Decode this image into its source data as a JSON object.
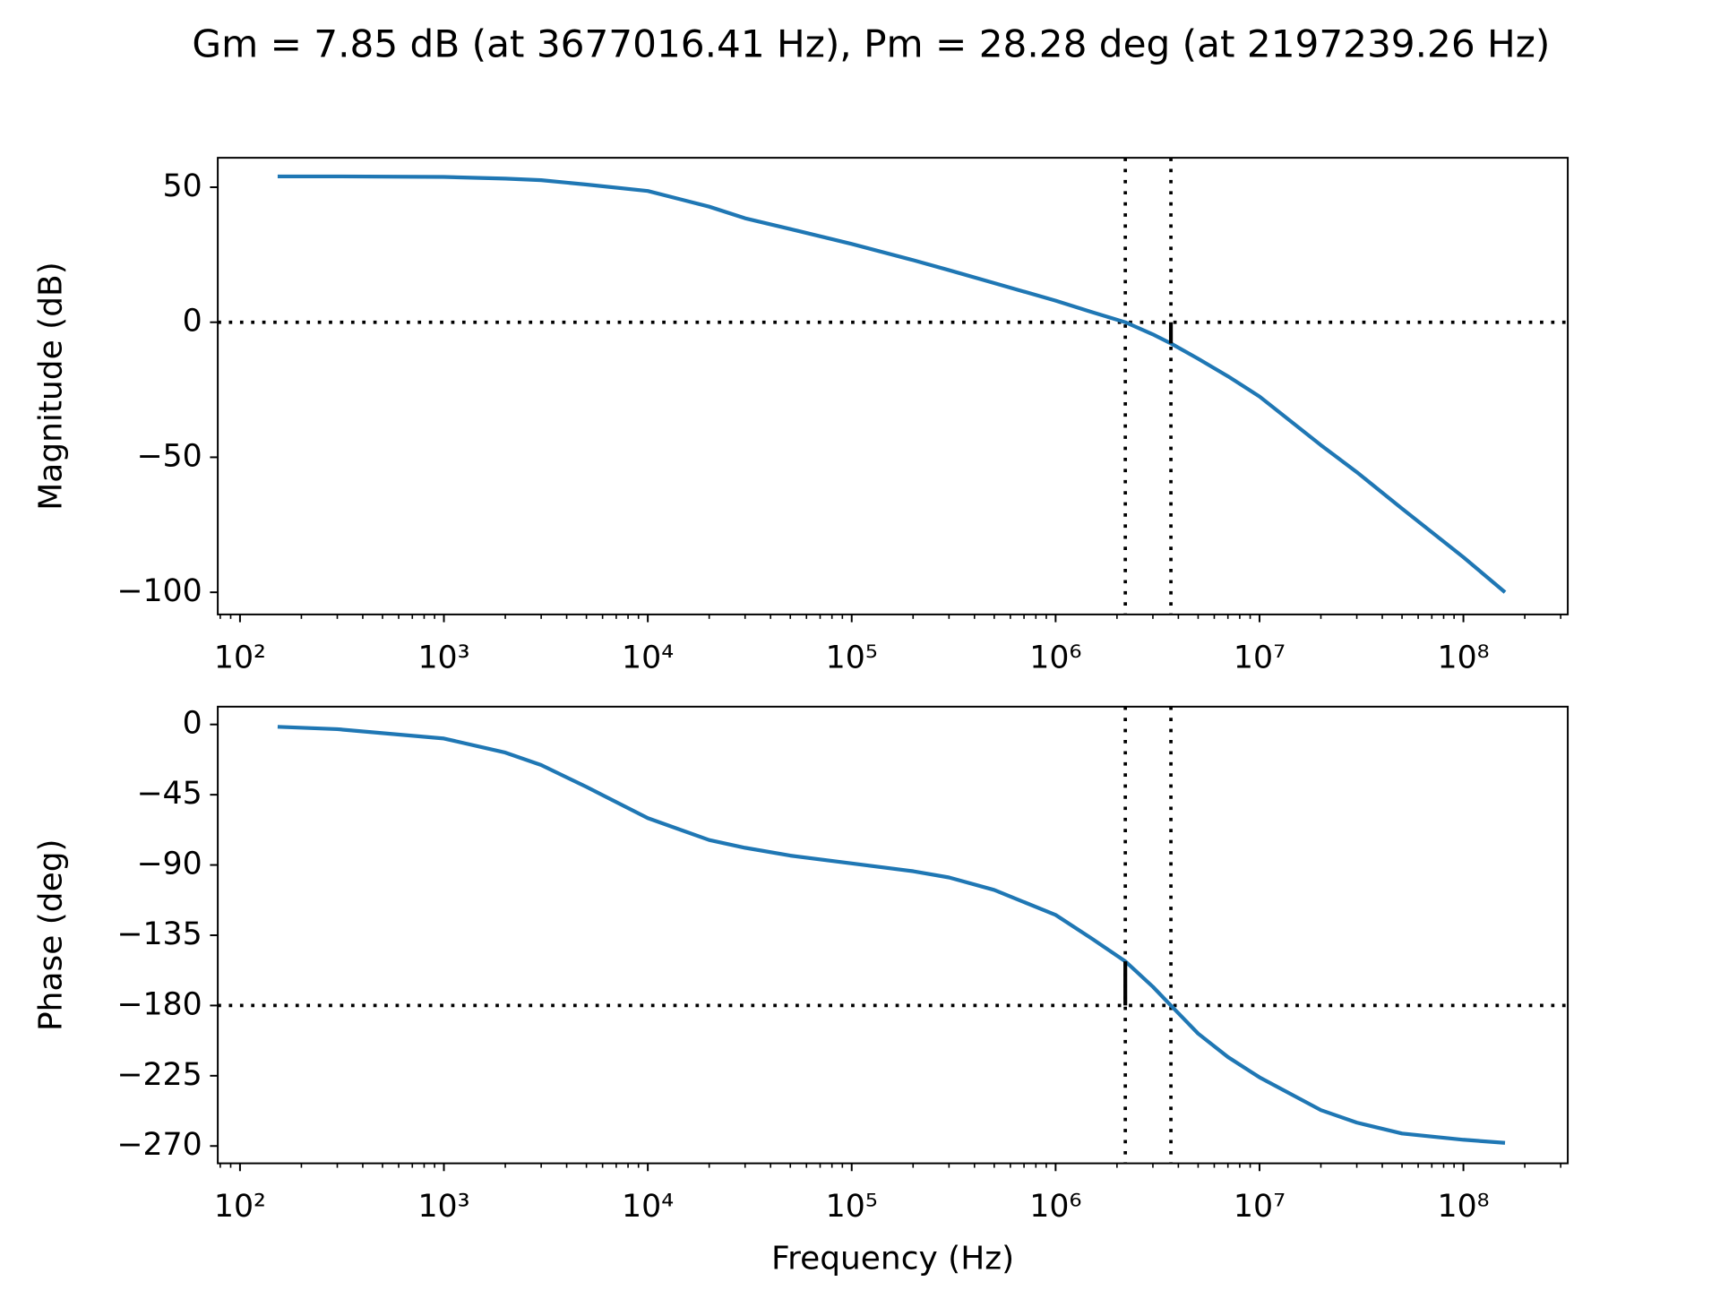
{
  "title": "Gm = 7.85 dB (at 3677016.41 Hz), Pm = 28.28 deg (at 2197239.26 Hz)",
  "chart_data": [
    {
      "type": "line",
      "ylabel": "Magnitude (dB)",
      "xscale": "log",
      "xminor": true,
      "color": "#1f77b4",
      "x": [
        153,
        300,
        1000,
        2000,
        3000,
        5000,
        10000,
        20000,
        30000,
        50000,
        100000,
        200000,
        300000,
        500000,
        1000000,
        1500000,
        2197239.26,
        3000000,
        3677016.41,
        5000000,
        7000000,
        10000000,
        20000000,
        30000000,
        50000000,
        100000000,
        160000000
      ],
      "values": [
        54,
        54,
        53.8,
        53.2,
        52.6,
        51,
        48.6,
        42.8,
        38.5,
        34.5,
        29,
        23,
        19.3,
        14.5,
        8,
        3.8,
        0,
        -4.5,
        -7.85,
        -13.5,
        -20,
        -27.5,
        -45.5,
        -55.5,
        -69,
        -87,
        -100
      ],
      "xlim": [
        77.8,
        325000000
      ],
      "xticks": [
        {
          "value": 100,
          "label": "10²"
        },
        {
          "value": 1000,
          "label": "10³"
        },
        {
          "value": 10000,
          "label": "10⁴"
        },
        {
          "value": 100000,
          "label": "10⁵"
        },
        {
          "value": 1000000,
          "label": "10⁶"
        },
        {
          "value": 10000000,
          "label": "10⁷"
        },
        {
          "value": 100000000,
          "label": "10⁸"
        }
      ],
      "ylim": [
        -108.2,
        60.9
      ],
      "yticks": [
        {
          "value": -100,
          "label": "−100"
        },
        {
          "value": -50,
          "label": "−50"
        },
        0,
        50
      ],
      "reference": 0,
      "crossover_frequencies": [
        2197239.26,
        3677016.41
      ],
      "margin_bar": {
        "x": 3677016.41,
        "from": 0,
        "to": -7.85
      }
    },
    {
      "type": "line",
      "ylabel": "Phase (deg)",
      "xlabel": "Frequency (Hz)",
      "xscale": "log",
      "xminor": true,
      "color": "#1f77b4",
      "x": [
        153,
        300,
        1000,
        2000,
        3000,
        5000,
        10000,
        20000,
        30000,
        50000,
        100000,
        200000,
        300000,
        500000,
        1000000,
        1500000,
        2197239.26,
        3000000,
        3677016.41,
        5000000,
        7000000,
        10000000,
        20000000,
        30000000,
        50000000,
        100000000,
        160000000
      ],
      "values": [
        -1.5,
        -3,
        -9,
        -18,
        -26,
        -40,
        -60,
        -74,
        -79,
        -84,
        -89,
        -94,
        -98,
        -106,
        -122,
        -137,
        -151.72,
        -168,
        -180,
        -198,
        -213,
        -226,
        -247,
        -255,
        -262,
        -266,
        -268
      ],
      "xlim": [
        77.8,
        325000000
      ],
      "xticks": [
        {
          "value": 100,
          "label": "10²"
        },
        {
          "value": 1000,
          "label": "10³"
        },
        {
          "value": 10000,
          "label": "10⁴"
        },
        {
          "value": 100000,
          "label": "10⁵"
        },
        {
          "value": 1000000,
          "label": "10⁶"
        },
        {
          "value": 10000000,
          "label": "10⁷"
        },
        {
          "value": 100000000,
          "label": "10⁸"
        }
      ],
      "ylim": [
        -281.1,
        11.4
      ],
      "yticks": [
        0,
        {
          "value": -45,
          "label": "−45"
        },
        {
          "value": -90,
          "label": "−90"
        },
        {
          "value": -135,
          "label": "−135"
        },
        {
          "value": -180,
          "label": "−180"
        },
        {
          "value": -225,
          "label": "−225"
        },
        {
          "value": -270,
          "label": "−270"
        }
      ],
      "reference": -180,
      "crossover_frequencies": [
        2197239.26,
        3677016.41
      ],
      "margin_bar": {
        "x": 2197239.26,
        "from": -180,
        "to": -151.72
      }
    }
  ]
}
